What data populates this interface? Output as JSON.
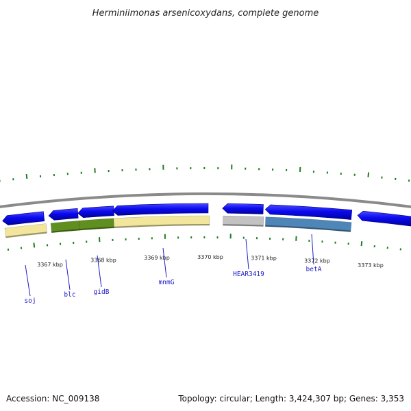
{
  "title": "Herminiimonas arsenicoxydans, complete genome",
  "footer": {
    "accession": "Accession: NC_009138",
    "summary": "Topology: circular; Length: 3,424,307 bp; Genes: 3,353"
  },
  "colors": {
    "arrow": "#0a0af0",
    "backbone": "#888888",
    "tick": "#1e7d1e",
    "label": "#1c1cc8",
    "cds_yellow": "#f2e69c",
    "cds_green": "#5f8f1e",
    "cds_grey": "#c2c2c2",
    "cds_blue": "#4f86b8"
  },
  "kbp_labels": [
    "3367 kbp",
    "3368 kbp",
    "3369 kbp",
    "3370 kbp",
    "3371 kbp",
    "3372 kbp",
    "3373 kbp"
  ],
  "genes": [
    {
      "name": "soj"
    },
    {
      "name": "blc"
    },
    {
      "name": "gidB"
    },
    {
      "name": "mnmG"
    },
    {
      "name": "HEAR3419"
    },
    {
      "name": "betA"
    }
  ]
}
